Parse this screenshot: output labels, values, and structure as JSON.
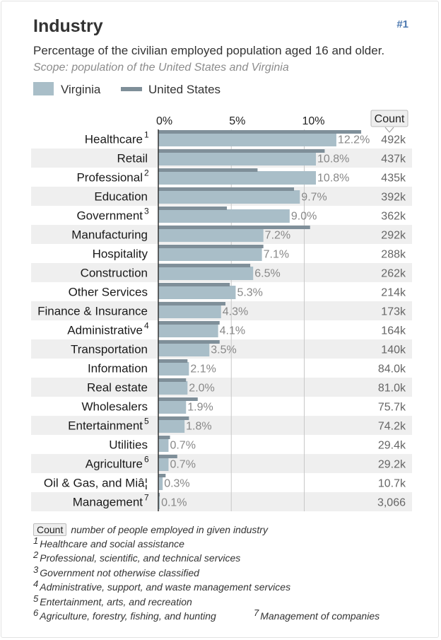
{
  "header": {
    "title": "Industry",
    "ref_tag": "#1",
    "subtitle": "Percentage of the civilian employed population aged 16 and older.",
    "scope": "Scope: population of the United States and Virginia"
  },
  "legend": {
    "virginia_label": "Virginia",
    "us_label": "United States",
    "virginia_color": "#a9bec8",
    "us_color": "#7f8f99"
  },
  "count_header": "Count",
  "chart_data": {
    "type": "bar",
    "orientation": "horizontal",
    "x_ticks": [
      0,
      5,
      10
    ],
    "x_tick_labels": [
      "0%",
      "5%",
      "10%"
    ],
    "xlim": [
      0,
      17
    ],
    "categories": [
      "Healthcare",
      "Retail",
      "Professional",
      "Education",
      "Government",
      "Manufacturing",
      "Hospitality",
      "Construction",
      "Other Services",
      "Finance & Insurance",
      "Administrative",
      "Transportation",
      "Information",
      "Real estate",
      "Wholesalers",
      "Entertainment",
      "Utilities",
      "Agriculture",
      "Oil & Gas, and Miâ¦",
      "Management"
    ],
    "footnote_marks": [
      "1",
      "",
      "2",
      "",
      "3",
      "",
      "",
      "",
      "",
      "",
      "4",
      "",
      "",
      "",
      "",
      "5",
      "",
      "6",
      "",
      "7"
    ],
    "series": [
      {
        "name": "Virginia",
        "values": [
          12.2,
          10.8,
          10.8,
          9.7,
          9.0,
          7.2,
          7.1,
          6.5,
          5.3,
          4.3,
          4.1,
          3.5,
          2.1,
          2.0,
          1.9,
          1.8,
          0.7,
          0.7,
          0.3,
          0.1
        ],
        "value_labels": [
          "12.2%",
          "10.8%",
          "10.8%",
          "9.7%",
          "9.0%",
          "7.2%",
          "7.1%",
          "6.5%",
          "5.3%",
          "4.3%",
          "4.1%",
          "3.5%",
          "2.1%",
          "2.0%",
          "1.9%",
          "1.8%",
          "0.7%",
          "0.7%",
          "0.3%",
          "0.1%"
        ]
      },
      {
        "name": "United States",
        "values": [
          13.9,
          11.4,
          6.8,
          9.3,
          4.7,
          10.4,
          7.2,
          6.3,
          4.9,
          4.6,
          4.2,
          4.2,
          2.0,
          1.9,
          2.7,
          2.1,
          0.8,
          1.3,
          0.5,
          0.1
        ]
      }
    ],
    "counts": [
      "492k",
      "437k",
      "435k",
      "392k",
      "362k",
      "292k",
      "288k",
      "262k",
      "214k",
      "173k",
      "164k",
      "140k",
      "84.0k",
      "81.0k",
      "75.7k",
      "74.2k",
      "29.4k",
      "29.2k",
      "10.7k",
      "3,066"
    ]
  },
  "notes": {
    "count_badge": "Count",
    "count_desc": "number of people employed in given industry",
    "items": [
      {
        "mark": "1",
        "text": "Healthcare and social assistance"
      },
      {
        "mark": "2",
        "text": "Professional, scientific, and technical services"
      },
      {
        "mark": "3",
        "text": "Government not otherwise classified"
      },
      {
        "mark": "4",
        "text": "Administrative, support, and waste management services"
      },
      {
        "mark": "5",
        "text": "Entertainment, arts, and recreation"
      },
      {
        "mark": "6",
        "text": "Agriculture, forestry, fishing, and hunting"
      },
      {
        "mark": "7",
        "text": "Management of companies"
      }
    ]
  }
}
